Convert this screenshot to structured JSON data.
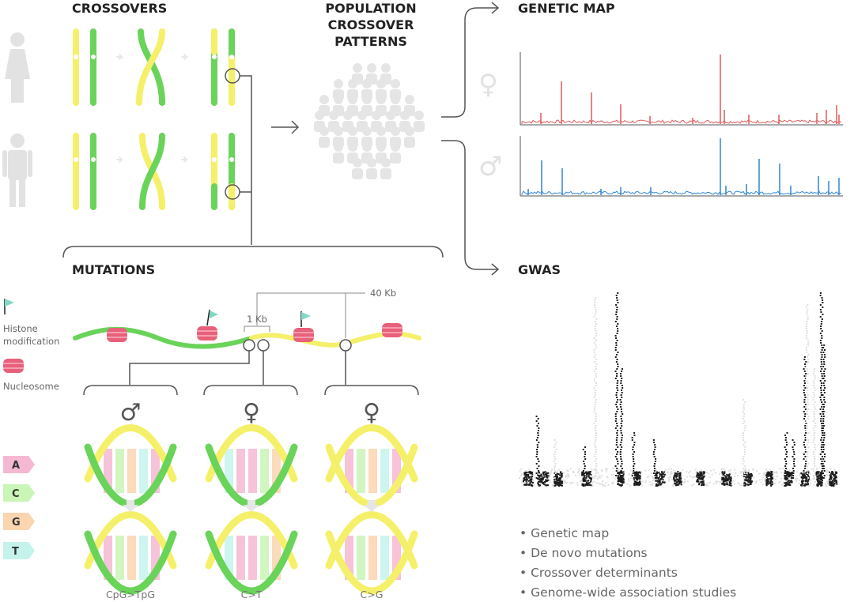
{
  "headings": {
    "crossovers": "CROSSOVERS",
    "population": [
      "POPULATION",
      "CROSSOVER",
      "PATTERNS"
    ],
    "genetic_map": "GENETIC MAP",
    "mutations": "MUTATIONS",
    "gwas": "GWAS"
  },
  "symbols": {
    "female": "♀",
    "male": "♂"
  },
  "scale_labels": {
    "one_kb": "1 Kb",
    "forty_kb": "40 Kb"
  },
  "legend": {
    "histone": [
      "Histone",
      "modification"
    ],
    "nucleosome": "Nucleosome",
    "bases": [
      "A",
      "C",
      "G",
      "T"
    ]
  },
  "mutation_types": [
    "CpG>TpG",
    "C>T",
    "C>G"
  ],
  "bullets": [
    "• Genetic map",
    "• De novo mutations",
    "• Crossover determinants",
    "• Genome-wide association studies"
  ],
  "colors": {
    "yellow": "#f5f06a",
    "green": "#6ad35a",
    "female_map": "#e05a5a",
    "male_map": "#2f86d6",
    "nucleosome": "#e8607a",
    "flag": "#7fd9c4",
    "base_A": "#f5b8d2",
    "base_C": "#c9f5b6",
    "base_G": "#fbd4b0",
    "base_T": "#c5f3ec",
    "gwas_dark": "#1c1c1c",
    "gwas_light": "#dde0dd"
  },
  "icons": [
    "female-person-icon",
    "male-person-icon",
    "crowd-icon",
    "female-symbol-icon",
    "male-symbol-icon"
  ]
}
